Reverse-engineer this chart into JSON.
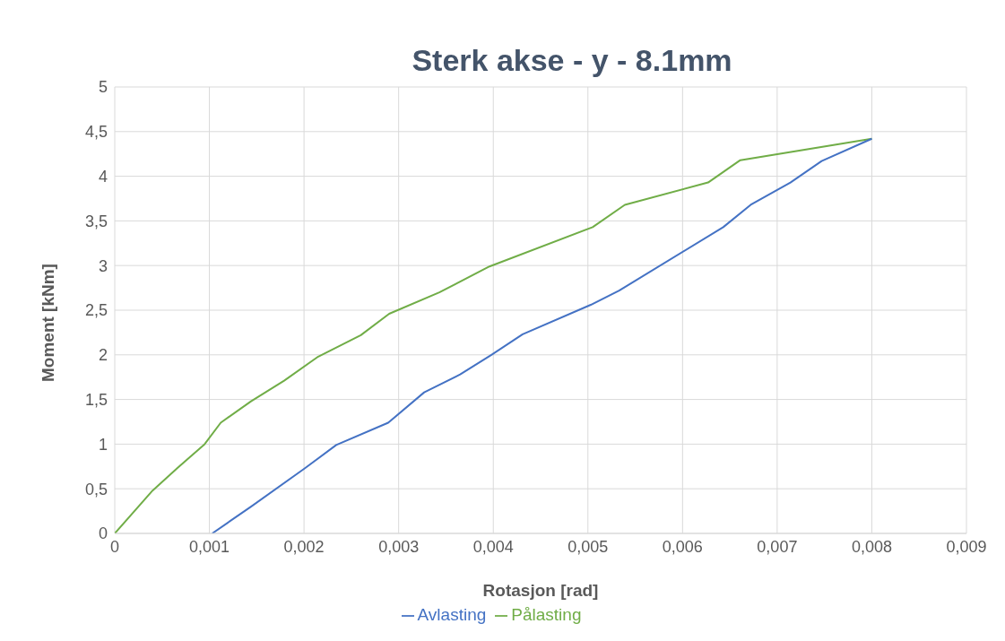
{
  "chart_data": {
    "type": "line",
    "title": "Sterk  akse - y - 8.1mm",
    "xlabel": "Rotasjon [rad]",
    "ylabel": "Moment [kNm]",
    "xlim": [
      0,
      0.009
    ],
    "ylim": [
      0,
      5
    ],
    "xticks": [
      0,
      {
        "value": 0.001,
        "label": "0,001"
      },
      {
        "value": 0.002,
        "label": "0,002"
      },
      {
        "value": 0.003,
        "label": "0,003"
      },
      {
        "value": 0.004,
        "label": "0,004"
      },
      {
        "value": 0.005,
        "label": "0,005"
      },
      {
        "value": 0.006,
        "label": "0,006"
      },
      {
        "value": 0.007,
        "label": "0,007"
      },
      {
        "value": 0.008,
        "label": "0,008"
      },
      {
        "value": 0.009,
        "label": "0,009"
      }
    ],
    "yticks": [
      0,
      {
        "value": 0.5,
        "label": "0,5"
      },
      1,
      {
        "value": 1.5,
        "label": "1,5"
      },
      2,
      {
        "value": 2.5,
        "label": "2,5"
      },
      3,
      {
        "value": 3.5,
        "label": "3,5"
      },
      4,
      {
        "value": 4.5,
        "label": "4,5"
      },
      5
    ],
    "grid": true,
    "legend": "bottom",
    "marker": "none",
    "series": [
      {
        "name": "Pålasting",
        "color": "#70ad47",
        "x": [
          0,
          0.0004,
          0.00066,
          0.00095,
          0.00112,
          0.00144,
          0.00179,
          0.00215,
          0.0026,
          0.0029,
          0.00343,
          0.00396,
          0.00505,
          0.00539,
          0.00627,
          0.00661,
          0.008
        ],
        "values": [
          0,
          0.48,
          0.73,
          1.0,
          1.24,
          1.48,
          1.71,
          1.98,
          2.22,
          2.46,
          2.7,
          2.99,
          3.43,
          3.68,
          3.93,
          4.18,
          4.42
        ]
      },
      {
        "name": "Avlasting",
        "color": "#4472c4",
        "x": [
          0.00103,
          0.00144,
          0.00201,
          0.00234,
          0.00289,
          0.00327,
          0.00365,
          0.00398,
          0.00431,
          0.00503,
          0.00533,
          0.00643,
          0.00672,
          0.00714,
          0.00747,
          0.008
        ],
        "values": [
          0,
          0.3,
          0.73,
          0.99,
          1.24,
          1.58,
          1.78,
          2.0,
          2.23,
          2.56,
          2.72,
          3.43,
          3.68,
          3.93,
          4.17,
          4.42
        ]
      }
    ]
  }
}
